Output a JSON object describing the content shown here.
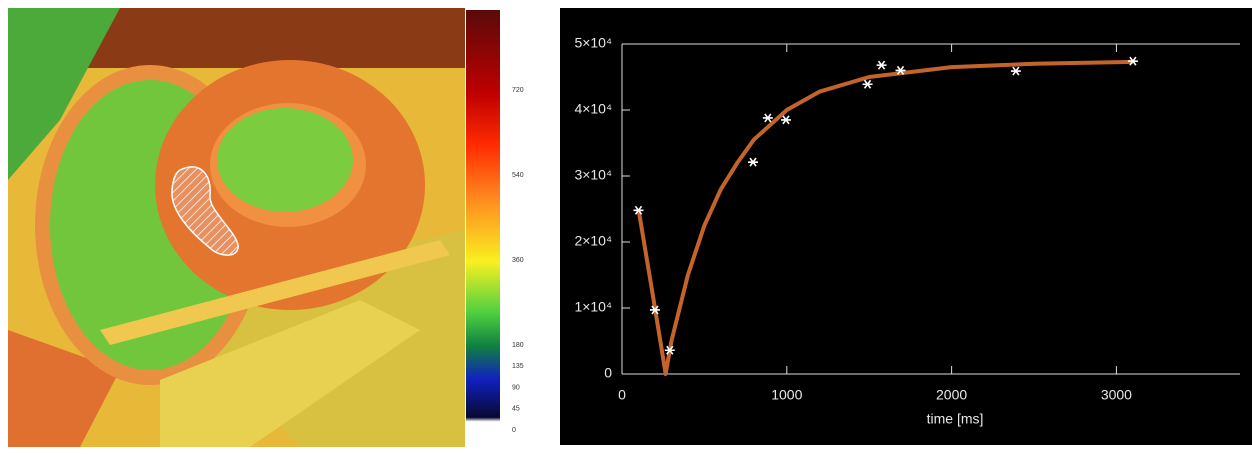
{
  "colorbar": {
    "lim": [
      0,
      890
    ],
    "ticks": [
      720,
      540,
      360,
      180,
      135,
      90,
      45,
      0
    ]
  },
  "chart_data": {
    "type": "scatter",
    "xlabel": "time [ms]",
    "xlim": [
      0,
      3750
    ],
    "xticks": [
      0,
      1000,
      2000,
      3000
    ],
    "ylim": [
      0,
      50000
    ],
    "yticks": [
      0,
      {
        "value": 10000,
        "label": "1×10⁴"
      },
      {
        "value": 20000,
        "label": "2×10⁴"
      },
      {
        "value": 30000,
        "label": "3×10⁴"
      },
      {
        "value": 40000,
        "label": "4×10⁴"
      },
      {
        "value": 50000,
        "label": "5×10⁴"
      }
    ],
    "series": [
      {
        "kind": "points",
        "color": "#ffffff",
        "x": [
          100,
          200,
          290,
          795,
          885,
          995,
          1490,
          1575,
          1690,
          2390,
          3100
        ],
        "values": [
          24800,
          9700,
          3600,
          32100,
          38800,
          38500,
          43900,
          46800,
          46000,
          45900,
          47400
        ]
      },
      {
        "kind": "line",
        "color": "#c4642a",
        "x": [
          100,
          200,
          265,
          300,
          400,
          500,
          600,
          700,
          800,
          1000,
          1200,
          1500,
          2000,
          2500,
          3100
        ],
        "values": [
          25000,
          10000,
          0,
          5000,
          15000,
          22500,
          28000,
          32000,
          35500,
          40000,
          42800,
          45000,
          46500,
          47000,
          47300
        ]
      }
    ]
  }
}
